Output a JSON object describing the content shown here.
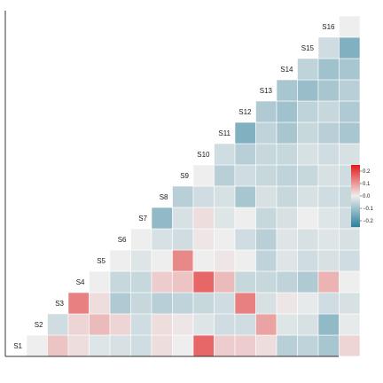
{
  "chart_data": {
    "type": "heatmap",
    "subtype": "correlation-triangle-lower",
    "title": "",
    "xlabel": "",
    "ylabel": "",
    "labels": [
      "S1",
      "S2",
      "S3",
      "S4",
      "S5",
      "S6",
      "S7",
      "S8",
      "S9",
      "S10",
      "S11",
      "S12",
      "S13",
      "S14",
      "S15",
      "S16"
    ],
    "color_scale": {
      "low_color": "#2c7f9b",
      "mid_color": "#eeeeee",
      "high_color": "#e31a1c",
      "min": -0.25,
      "max": 0.25,
      "ticks": [
        0.2,
        0.1,
        0.0,
        -0.1,
        -0.2
      ],
      "tick_labels": [
        "0.2",
        "0.1",
        "0.0",
        "−0.1",
        "−0.2"
      ]
    },
    "rows": [
      {
        "label": "S1",
        "values": [
          0.0,
          0.05,
          0.02,
          -0.02,
          -0.03,
          -0.04,
          0.02,
          0.0,
          0.16,
          0.04,
          0.04,
          0.02,
          -0.07,
          -0.06,
          -0.09,
          0.03
        ]
      },
      {
        "label": "S2",
        "values": [
          -0.04,
          0.03,
          0.06,
          0.03,
          -0.04,
          0.02,
          0.01,
          -0.02,
          -0.04,
          -0.04,
          0.09,
          -0.02,
          -0.03,
          -0.12,
          -0.01
        ]
      },
      {
        "label": "S3",
        "values": [
          0.13,
          0.02,
          -0.08,
          -0.05,
          -0.07,
          -0.06,
          -0.05,
          -0.04,
          0.13,
          -0.03,
          0.01,
          -0.01,
          -0.04,
          -0.03
        ]
      },
      {
        "label": "S4",
        "values": [
          0.0,
          -0.05,
          -0.05,
          0.04,
          0.05,
          0.16,
          0.06,
          -0.05,
          -0.05,
          -0.06,
          -0.08,
          0.07,
          0.0
        ]
      },
      {
        "label": "S5",
        "values": [
          0.0,
          -0.02,
          0.0,
          0.12,
          0.0,
          0.01,
          0.0,
          -0.06,
          -0.02,
          -0.04,
          -0.03,
          -0.04
        ]
      },
      {
        "label": "S6",
        "values": [
          0.0,
          -0.03,
          -0.04,
          0.01,
          0.0,
          -0.04,
          -0.07,
          -0.02,
          -0.03,
          -0.02,
          -0.03
        ]
      },
      {
        "label": "S7",
        "values": [
          -0.12,
          -0.03,
          0.02,
          -0.02,
          0.0,
          -0.05,
          -0.03,
          0.0,
          -0.02,
          -0.04
        ]
      },
      {
        "label": "S8",
        "values": [
          -0.07,
          -0.04,
          -0.03,
          -0.09,
          -0.03,
          -0.05,
          -0.03,
          -0.04,
          -0.05
        ]
      },
      {
        "label": "S9",
        "values": [
          0.0,
          -0.07,
          -0.04,
          -0.05,
          -0.06,
          -0.05,
          -0.03,
          -0.04
        ]
      },
      {
        "label": "S10",
        "values": [
          -0.04,
          -0.07,
          -0.05,
          -0.05,
          -0.03,
          -0.04,
          -0.03
        ]
      },
      {
        "label": "S11",
        "values": [
          -0.14,
          -0.06,
          -0.09,
          -0.05,
          -0.07,
          -0.09
        ]
      },
      {
        "label": "S12",
        "values": [
          -0.08,
          -0.1,
          -0.06,
          -0.05,
          -0.08
        ]
      },
      {
        "label": "S13",
        "values": [
          -0.09,
          -0.11,
          -0.09,
          -0.07
        ]
      },
      {
        "label": "S14",
        "values": [
          -0.06,
          -0.1,
          -0.09
        ]
      },
      {
        "label": "S15",
        "values": [
          -0.04,
          -0.14
        ]
      },
      {
        "label": "S16",
        "values": [
          0.0
        ]
      }
    ],
    "grid": false,
    "legend": "right"
  }
}
